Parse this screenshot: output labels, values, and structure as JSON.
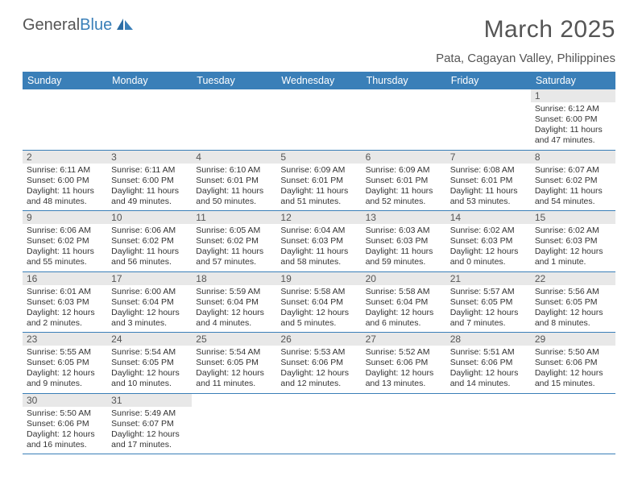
{
  "brand": {
    "part1": "General",
    "part2": "Blue"
  },
  "title": "March 2025",
  "location": "Pata, Cagayan Valley, Philippines",
  "header_bg": "#3a7fb8",
  "daynum_bg": "#e8e8e8",
  "days": [
    "Sunday",
    "Monday",
    "Tuesday",
    "Wednesday",
    "Thursday",
    "Friday",
    "Saturday"
  ],
  "weeks": [
    [
      null,
      null,
      null,
      null,
      null,
      null,
      {
        "d": "1",
        "sr": "Sunrise: 6:12 AM",
        "ss": "Sunset: 6:00 PM",
        "dl": "Daylight: 11 hours and 47 minutes."
      }
    ],
    [
      {
        "d": "2",
        "sr": "Sunrise: 6:11 AM",
        "ss": "Sunset: 6:00 PM",
        "dl": "Daylight: 11 hours and 48 minutes."
      },
      {
        "d": "3",
        "sr": "Sunrise: 6:11 AM",
        "ss": "Sunset: 6:00 PM",
        "dl": "Daylight: 11 hours and 49 minutes."
      },
      {
        "d": "4",
        "sr": "Sunrise: 6:10 AM",
        "ss": "Sunset: 6:01 PM",
        "dl": "Daylight: 11 hours and 50 minutes."
      },
      {
        "d": "5",
        "sr": "Sunrise: 6:09 AM",
        "ss": "Sunset: 6:01 PM",
        "dl": "Daylight: 11 hours and 51 minutes."
      },
      {
        "d": "6",
        "sr": "Sunrise: 6:09 AM",
        "ss": "Sunset: 6:01 PM",
        "dl": "Daylight: 11 hours and 52 minutes."
      },
      {
        "d": "7",
        "sr": "Sunrise: 6:08 AM",
        "ss": "Sunset: 6:01 PM",
        "dl": "Daylight: 11 hours and 53 minutes."
      },
      {
        "d": "8",
        "sr": "Sunrise: 6:07 AM",
        "ss": "Sunset: 6:02 PM",
        "dl": "Daylight: 11 hours and 54 minutes."
      }
    ],
    [
      {
        "d": "9",
        "sr": "Sunrise: 6:06 AM",
        "ss": "Sunset: 6:02 PM",
        "dl": "Daylight: 11 hours and 55 minutes."
      },
      {
        "d": "10",
        "sr": "Sunrise: 6:06 AM",
        "ss": "Sunset: 6:02 PM",
        "dl": "Daylight: 11 hours and 56 minutes."
      },
      {
        "d": "11",
        "sr": "Sunrise: 6:05 AM",
        "ss": "Sunset: 6:02 PM",
        "dl": "Daylight: 11 hours and 57 minutes."
      },
      {
        "d": "12",
        "sr": "Sunrise: 6:04 AM",
        "ss": "Sunset: 6:03 PM",
        "dl": "Daylight: 11 hours and 58 minutes."
      },
      {
        "d": "13",
        "sr": "Sunrise: 6:03 AM",
        "ss": "Sunset: 6:03 PM",
        "dl": "Daylight: 11 hours and 59 minutes."
      },
      {
        "d": "14",
        "sr": "Sunrise: 6:02 AM",
        "ss": "Sunset: 6:03 PM",
        "dl": "Daylight: 12 hours and 0 minutes."
      },
      {
        "d": "15",
        "sr": "Sunrise: 6:02 AM",
        "ss": "Sunset: 6:03 PM",
        "dl": "Daylight: 12 hours and 1 minute."
      }
    ],
    [
      {
        "d": "16",
        "sr": "Sunrise: 6:01 AM",
        "ss": "Sunset: 6:03 PM",
        "dl": "Daylight: 12 hours and 2 minutes."
      },
      {
        "d": "17",
        "sr": "Sunrise: 6:00 AM",
        "ss": "Sunset: 6:04 PM",
        "dl": "Daylight: 12 hours and 3 minutes."
      },
      {
        "d": "18",
        "sr": "Sunrise: 5:59 AM",
        "ss": "Sunset: 6:04 PM",
        "dl": "Daylight: 12 hours and 4 minutes."
      },
      {
        "d": "19",
        "sr": "Sunrise: 5:58 AM",
        "ss": "Sunset: 6:04 PM",
        "dl": "Daylight: 12 hours and 5 minutes."
      },
      {
        "d": "20",
        "sr": "Sunrise: 5:58 AM",
        "ss": "Sunset: 6:04 PM",
        "dl": "Daylight: 12 hours and 6 minutes."
      },
      {
        "d": "21",
        "sr": "Sunrise: 5:57 AM",
        "ss": "Sunset: 6:05 PM",
        "dl": "Daylight: 12 hours and 7 minutes."
      },
      {
        "d": "22",
        "sr": "Sunrise: 5:56 AM",
        "ss": "Sunset: 6:05 PM",
        "dl": "Daylight: 12 hours and 8 minutes."
      }
    ],
    [
      {
        "d": "23",
        "sr": "Sunrise: 5:55 AM",
        "ss": "Sunset: 6:05 PM",
        "dl": "Daylight: 12 hours and 9 minutes."
      },
      {
        "d": "24",
        "sr": "Sunrise: 5:54 AM",
        "ss": "Sunset: 6:05 PM",
        "dl": "Daylight: 12 hours and 10 minutes."
      },
      {
        "d": "25",
        "sr": "Sunrise: 5:54 AM",
        "ss": "Sunset: 6:05 PM",
        "dl": "Daylight: 12 hours and 11 minutes."
      },
      {
        "d": "26",
        "sr": "Sunrise: 5:53 AM",
        "ss": "Sunset: 6:06 PM",
        "dl": "Daylight: 12 hours and 12 minutes."
      },
      {
        "d": "27",
        "sr": "Sunrise: 5:52 AM",
        "ss": "Sunset: 6:06 PM",
        "dl": "Daylight: 12 hours and 13 minutes."
      },
      {
        "d": "28",
        "sr": "Sunrise: 5:51 AM",
        "ss": "Sunset: 6:06 PM",
        "dl": "Daylight: 12 hours and 14 minutes."
      },
      {
        "d": "29",
        "sr": "Sunrise: 5:50 AM",
        "ss": "Sunset: 6:06 PM",
        "dl": "Daylight: 12 hours and 15 minutes."
      }
    ],
    [
      {
        "d": "30",
        "sr": "Sunrise: 5:50 AM",
        "ss": "Sunset: 6:06 PM",
        "dl": "Daylight: 12 hours and 16 minutes."
      },
      {
        "d": "31",
        "sr": "Sunrise: 5:49 AM",
        "ss": "Sunset: 6:07 PM",
        "dl": "Daylight: 12 hours and 17 minutes."
      },
      null,
      null,
      null,
      null,
      null
    ]
  ]
}
